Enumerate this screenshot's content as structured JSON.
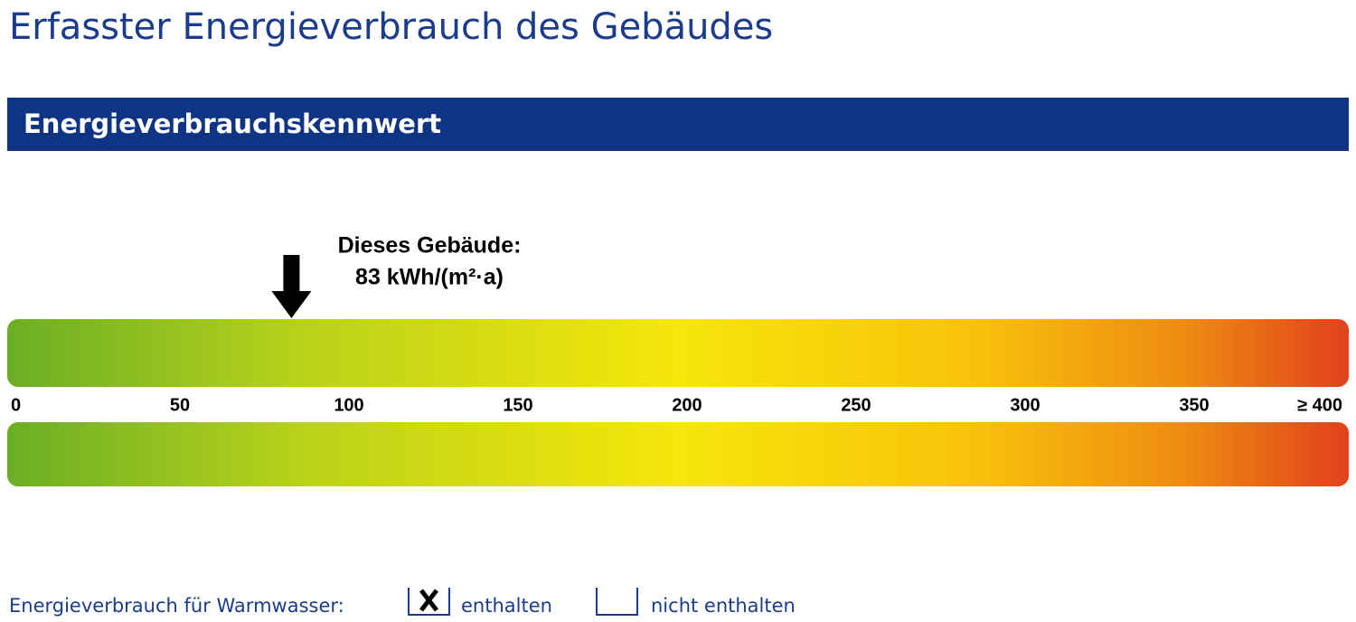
{
  "header": {
    "title": "Erfasster Energieverbrauch des Gebäudes"
  },
  "section": {
    "title": "Energieverbrauchskennwert"
  },
  "scale": {
    "marker_label": "Dieses Gebäude:",
    "value": 83,
    "value_label": "83 kWh/(m²·a)",
    "xlim": [
      0,
      400
    ],
    "xticks": [
      0,
      50,
      100,
      150,
      200,
      250,
      300,
      350,
      {
        "value": 400,
        "label": "≥ 400"
      }
    ]
  },
  "footer": {
    "label": "Energieverbrauch für Warmwasser:",
    "options": [
      {
        "label": "enthalten",
        "checked": true
      },
      {
        "label": "nicht enthalten",
        "checked": false
      }
    ]
  }
}
